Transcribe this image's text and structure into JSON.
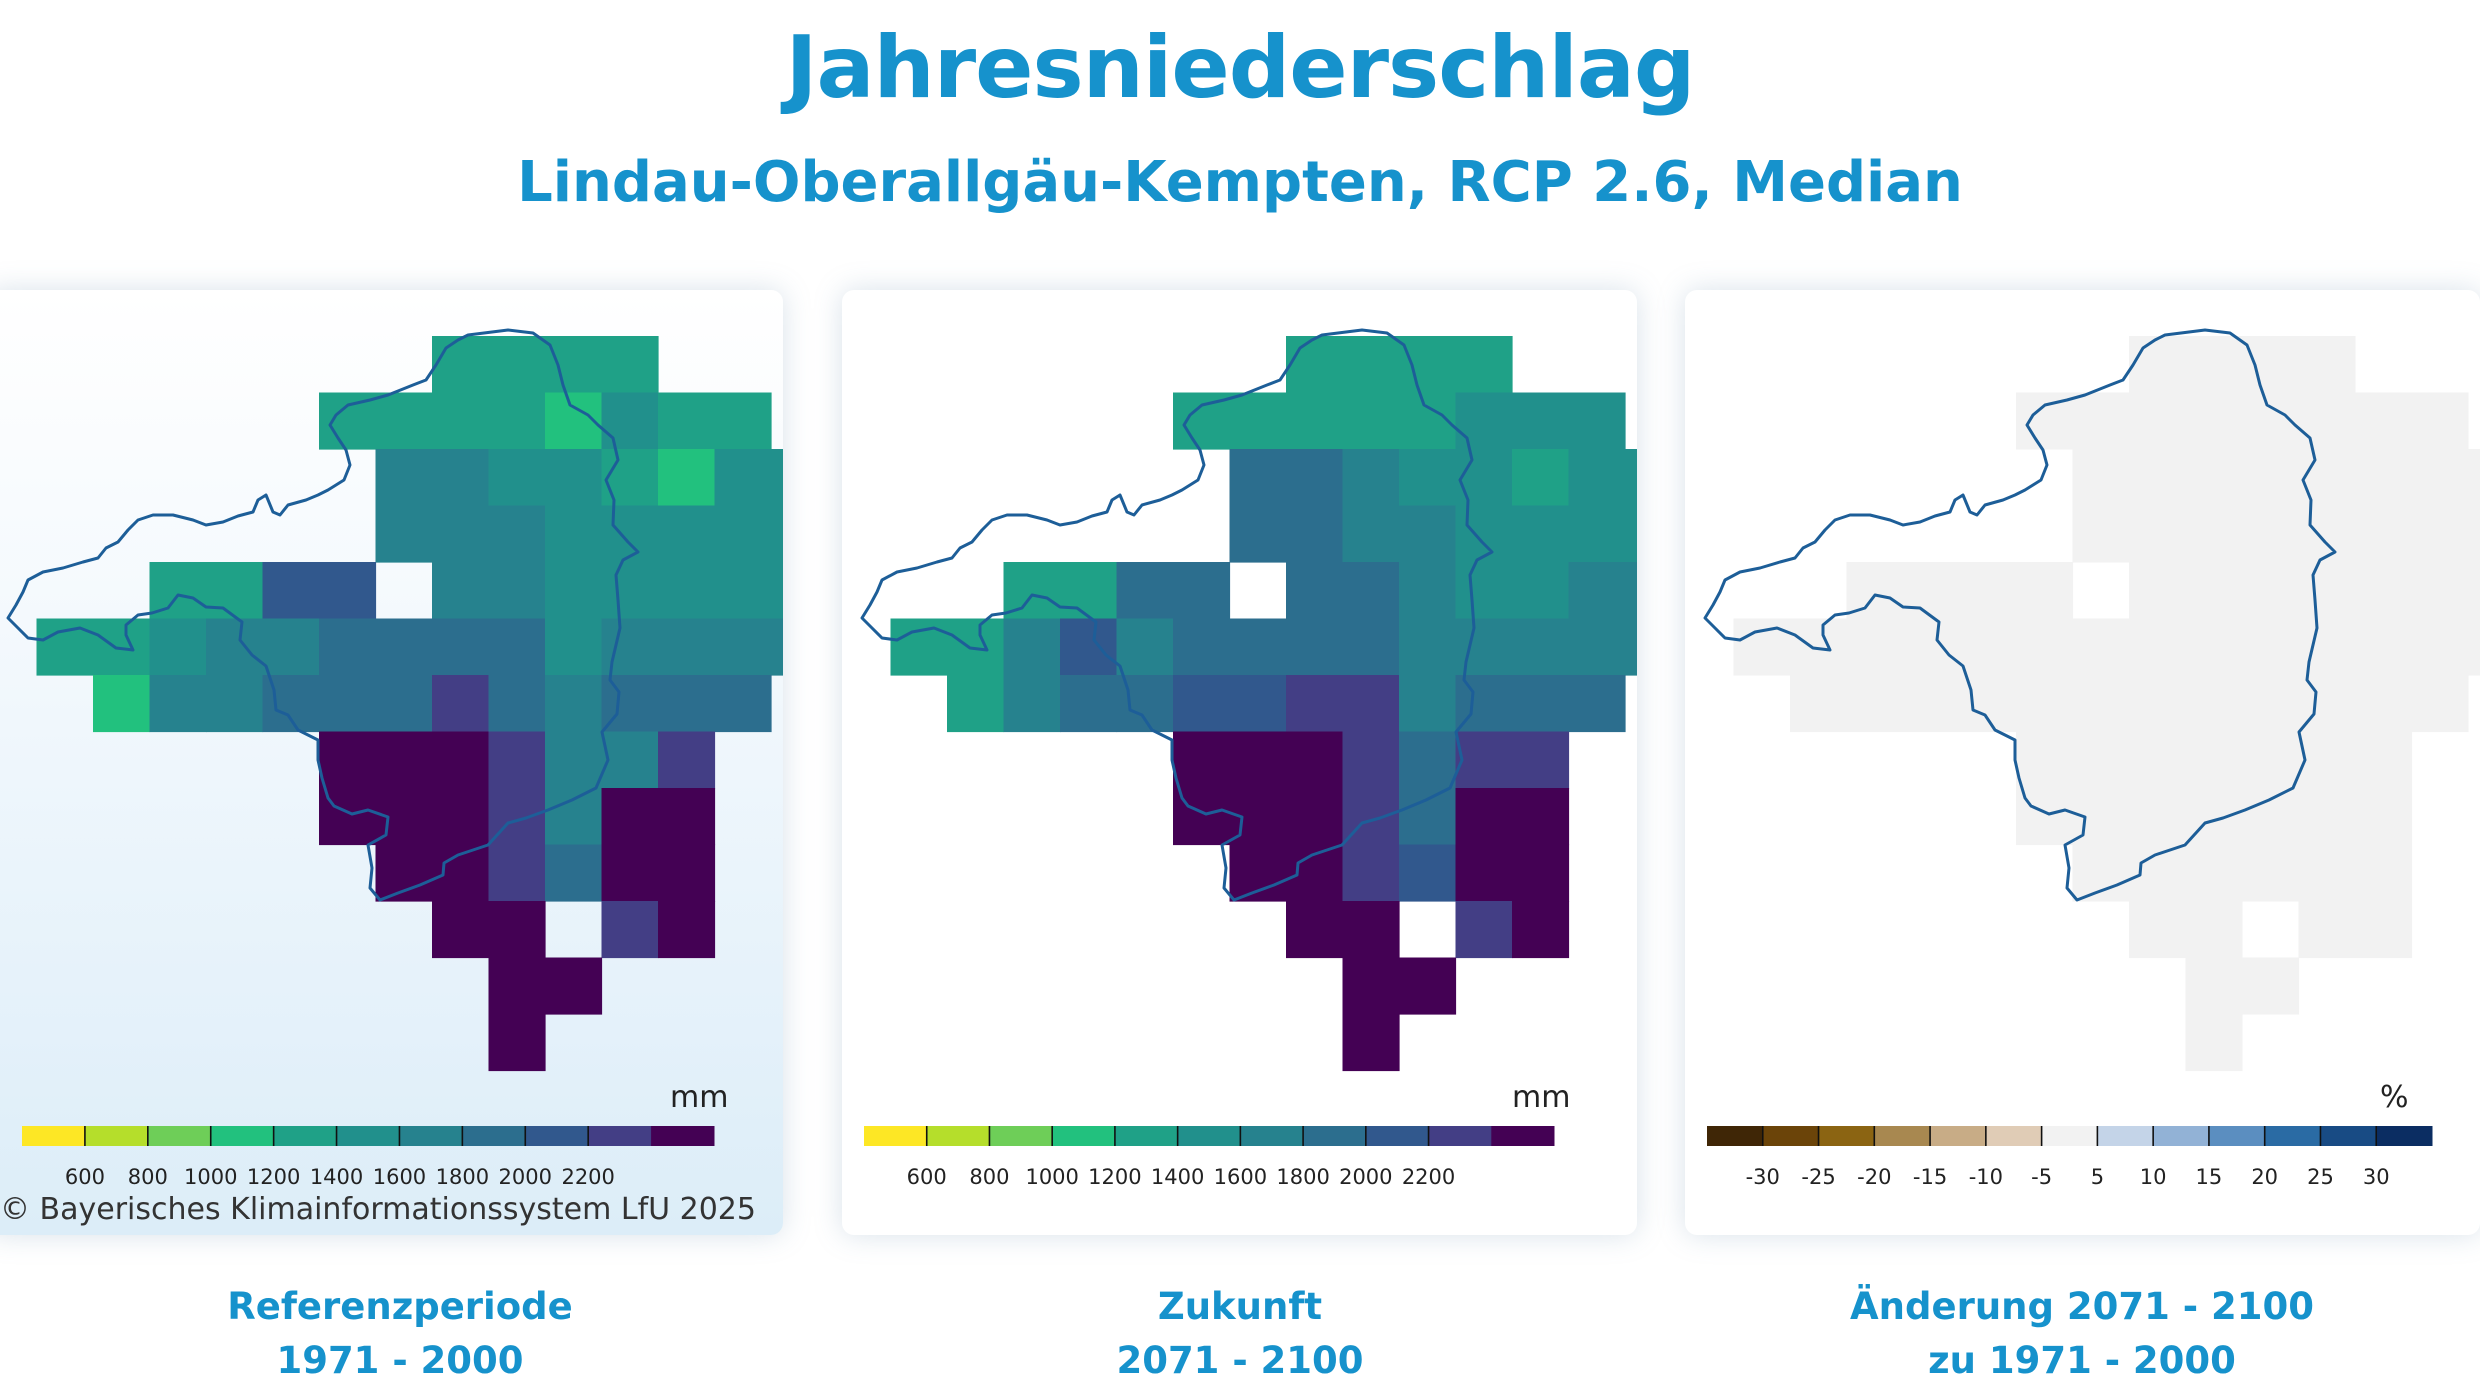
{
  "title": "Jahresniederschlag",
  "subtitle": "Lindau-Oberallgäu-Kempten, RCP 2.6, Median",
  "copyright": "© Bayerisches Klimainformationssystem LfU 2025",
  "precip_scale": {
    "unit": "mm",
    "colors": [
      "#fde725",
      "#b5de2b",
      "#6ece58",
      "#22c17e",
      "#1fa187",
      "#21908c",
      "#26828e",
      "#2c6e8e",
      "#31588d",
      "#433e85",
      "#440154"
    ],
    "ticks": [
      "600",
      "800",
      "1000",
      "1200",
      "1400",
      "1600",
      "1800",
      "2000",
      "2200"
    ]
  },
  "change_scale": {
    "unit": "%",
    "colors": [
      "#3f2606",
      "#6b4409",
      "#8b6412",
      "#a88850",
      "#c8ac86",
      "#e0ccb6",
      "#f2f2f2",
      "#c4d4e8",
      "#92b2d6",
      "#5b8ec0",
      "#2a6ba4",
      "#184b84",
      "#0b2d62"
    ],
    "ticks": [
      "-30",
      "-25",
      "-20",
      "-15",
      "-10",
      "-5",
      "5",
      "10",
      "15",
      "20",
      "25",
      "30"
    ]
  },
  "panels": [
    {
      "id": "ref",
      "caption_line1": "Referenzperiode",
      "caption_line2": "1971 - 2000"
    },
    {
      "id": "fut",
      "caption_line1": "Zukunft",
      "caption_line2": "2071 - 2100"
    },
    {
      "id": "chg",
      "caption_line1": "Änderung 2071 - 2100",
      "caption_line2": "zu 1971 - 2000"
    }
  ],
  "grid_ref": {
    "0": {
      "8": 4,
      "9": 4,
      "10": 4,
      "11": 4
    },
    "1": {
      "6": 4,
      "7": 4,
      "8": 4,
      "9": 4,
      "10": 3,
      "11": 5,
      "12": 4,
      "13": 4
    },
    "2": {
      "7": 6,
      "8": 6,
      "9": 5,
      "10": 5,
      "11": 4,
      "12": 3,
      "13": 5,
      "14": 5
    },
    "3": {
      "7": 6,
      "8": 6,
      "9": 6,
      "10": 5,
      "11": 5,
      "12": 5,
      "13": 5,
      "14": 5
    },
    "4": {
      "3": 4,
      "4": 4,
      "5": 8,
      "6": 8,
      "8": 6,
      "9": 6,
      "10": 5,
      "11": 5,
      "12": 5,
      "13": 5,
      "14": 5
    },
    "5": {
      "1": 4,
      "2": 4,
      "3": 5,
      "4": 6,
      "5": 6,
      "6": 7,
      "7": 7,
      "8": 7,
      "9": 7,
      "10": 5,
      "11": 6,
      "12": 6,
      "13": 6,
      "14": 6
    },
    "6": {
      "2": 3,
      "3": 6,
      "4": 6,
      "5": 7,
      "6": 7,
      "7": 7,
      "8": 9,
      "9": 7,
      "10": 6,
      "11": 7,
      "12": 7,
      "13": 7
    },
    "7": {
      "6": 10,
      "7": 10,
      "8": 10,
      "9": 9,
      "10": 6,
      "11": 6,
      "12": 9
    },
    "8": {
      "6": 10,
      "7": 10,
      "8": 10,
      "9": 9,
      "10": 6,
      "11": 10,
      "12": 10
    },
    "9": {
      "7": 10,
      "8": 10,
      "9": 9,
      "10": 7,
      "11": 10,
      "12": 10
    },
    "10": {
      "8": 10,
      "9": 10,
      "11": 9,
      "12": 10
    },
    "11": {
      "9": 10,
      "10": 10
    },
    "12": {
      "9": 10
    }
  },
  "grid_fut": {
    "0": {
      "8": 4,
      "9": 4,
      "10": 4,
      "11": 4
    },
    "1": {
      "6": 4,
      "7": 4,
      "8": 4,
      "9": 4,
      "10": 4,
      "11": 5,
      "12": 5,
      "13": 5
    },
    "2": {
      "7": 7,
      "8": 7,
      "9": 6,
      "10": 5,
      "11": 5,
      "12": 4,
      "13": 5,
      "14": 5
    },
    "3": {
      "7": 7,
      "8": 7,
      "9": 6,
      "10": 6,
      "11": 5,
      "12": 5,
      "13": 5,
      "14": 5
    },
    "4": {
      "3": 4,
      "4": 4,
      "5": 7,
      "6": 7,
      "8": 7,
      "9": 7,
      "10": 6,
      "11": 5,
      "12": 5,
      "13": 6,
      "14": 6
    },
    "5": {
      "1": 4,
      "2": 4,
      "3": 6,
      "4": 8,
      "5": 6,
      "6": 7,
      "7": 7,
      "8": 7,
      "9": 7,
      "10": 6,
      "11": 6,
      "12": 6,
      "13": 6,
      "14": 6
    },
    "6": {
      "2": 4,
      "3": 6,
      "4": 7,
      "5": 7,
      "6": 8,
      "7": 8,
      "8": 9,
      "9": 9,
      "10": 6,
      "11": 7,
      "12": 7,
      "13": 7
    },
    "7": {
      "6": 10,
      "7": 10,
      "8": 10,
      "9": 9,
      "10": 7,
      "11": 9,
      "12": 9
    },
    "8": {
      "6": 10,
      "7": 10,
      "8": 10,
      "9": 9,
      "10": 7,
      "11": 10,
      "12": 10
    },
    "9": {
      "7": 10,
      "8": 10,
      "9": 9,
      "10": 8,
      "11": 10,
      "12": 10
    },
    "10": {
      "8": 10,
      "9": 10,
      "11": 9,
      "12": 10
    },
    "11": {
      "9": 10,
      "10": 10
    },
    "12": {
      "9": 10
    }
  },
  "change_value_pct": 0
}
